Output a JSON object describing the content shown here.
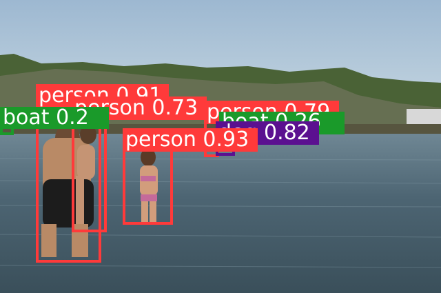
{
  "colors": {
    "person": "#ff3a3a",
    "boat": "#1a9a2a",
    "dog": "#5b1090",
    "sky": "#a6bfd6",
    "water": "#3f5866",
    "hills": "#3f5a2e"
  },
  "detections": [
    {
      "cls": "person",
      "text": "person 0.91"
    },
    {
      "cls": "person",
      "text": "person 0.73"
    },
    {
      "cls": "person",
      "text": "person 0.79"
    },
    {
      "cls": "person",
      "text": "person 0.93"
    },
    {
      "cls": "boat",
      "text": "boat 0.2"
    },
    {
      "cls": "boat",
      "text": "boat 0.26"
    },
    {
      "cls": "dog",
      "text": "dog 0.82"
    }
  ]
}
